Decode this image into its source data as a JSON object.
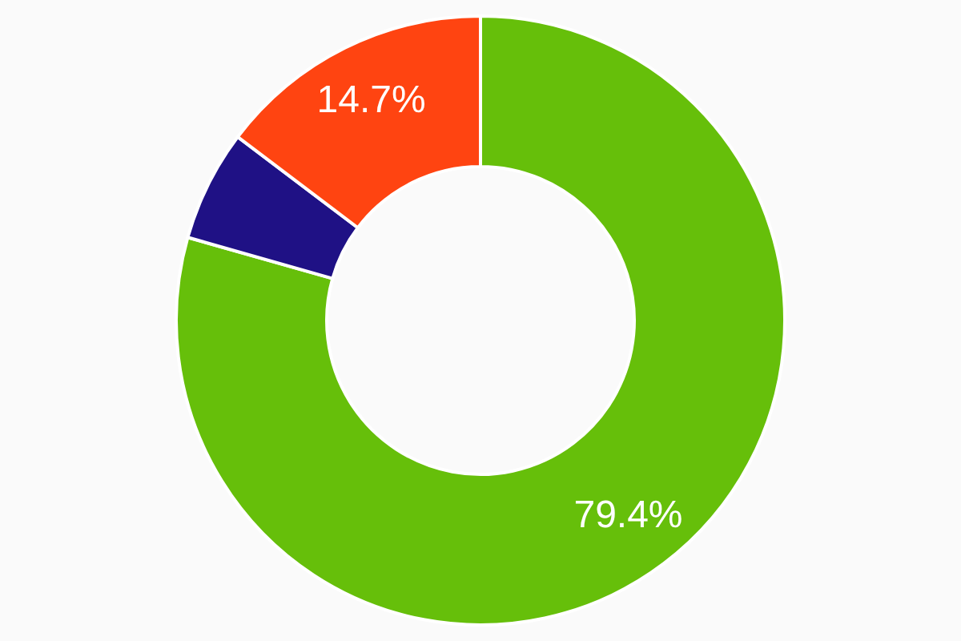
{
  "chart_data": {
    "type": "donut",
    "categories": [
      null,
      null,
      null
    ],
    "values": [
      79.4,
      5.9,
      14.7
    ],
    "colors": [
      "#66bf0a",
      "#1f1185",
      "#ff4411"
    ],
    "value_labels": [
      "79.4%",
      null,
      "14.7%"
    ]
  }
}
